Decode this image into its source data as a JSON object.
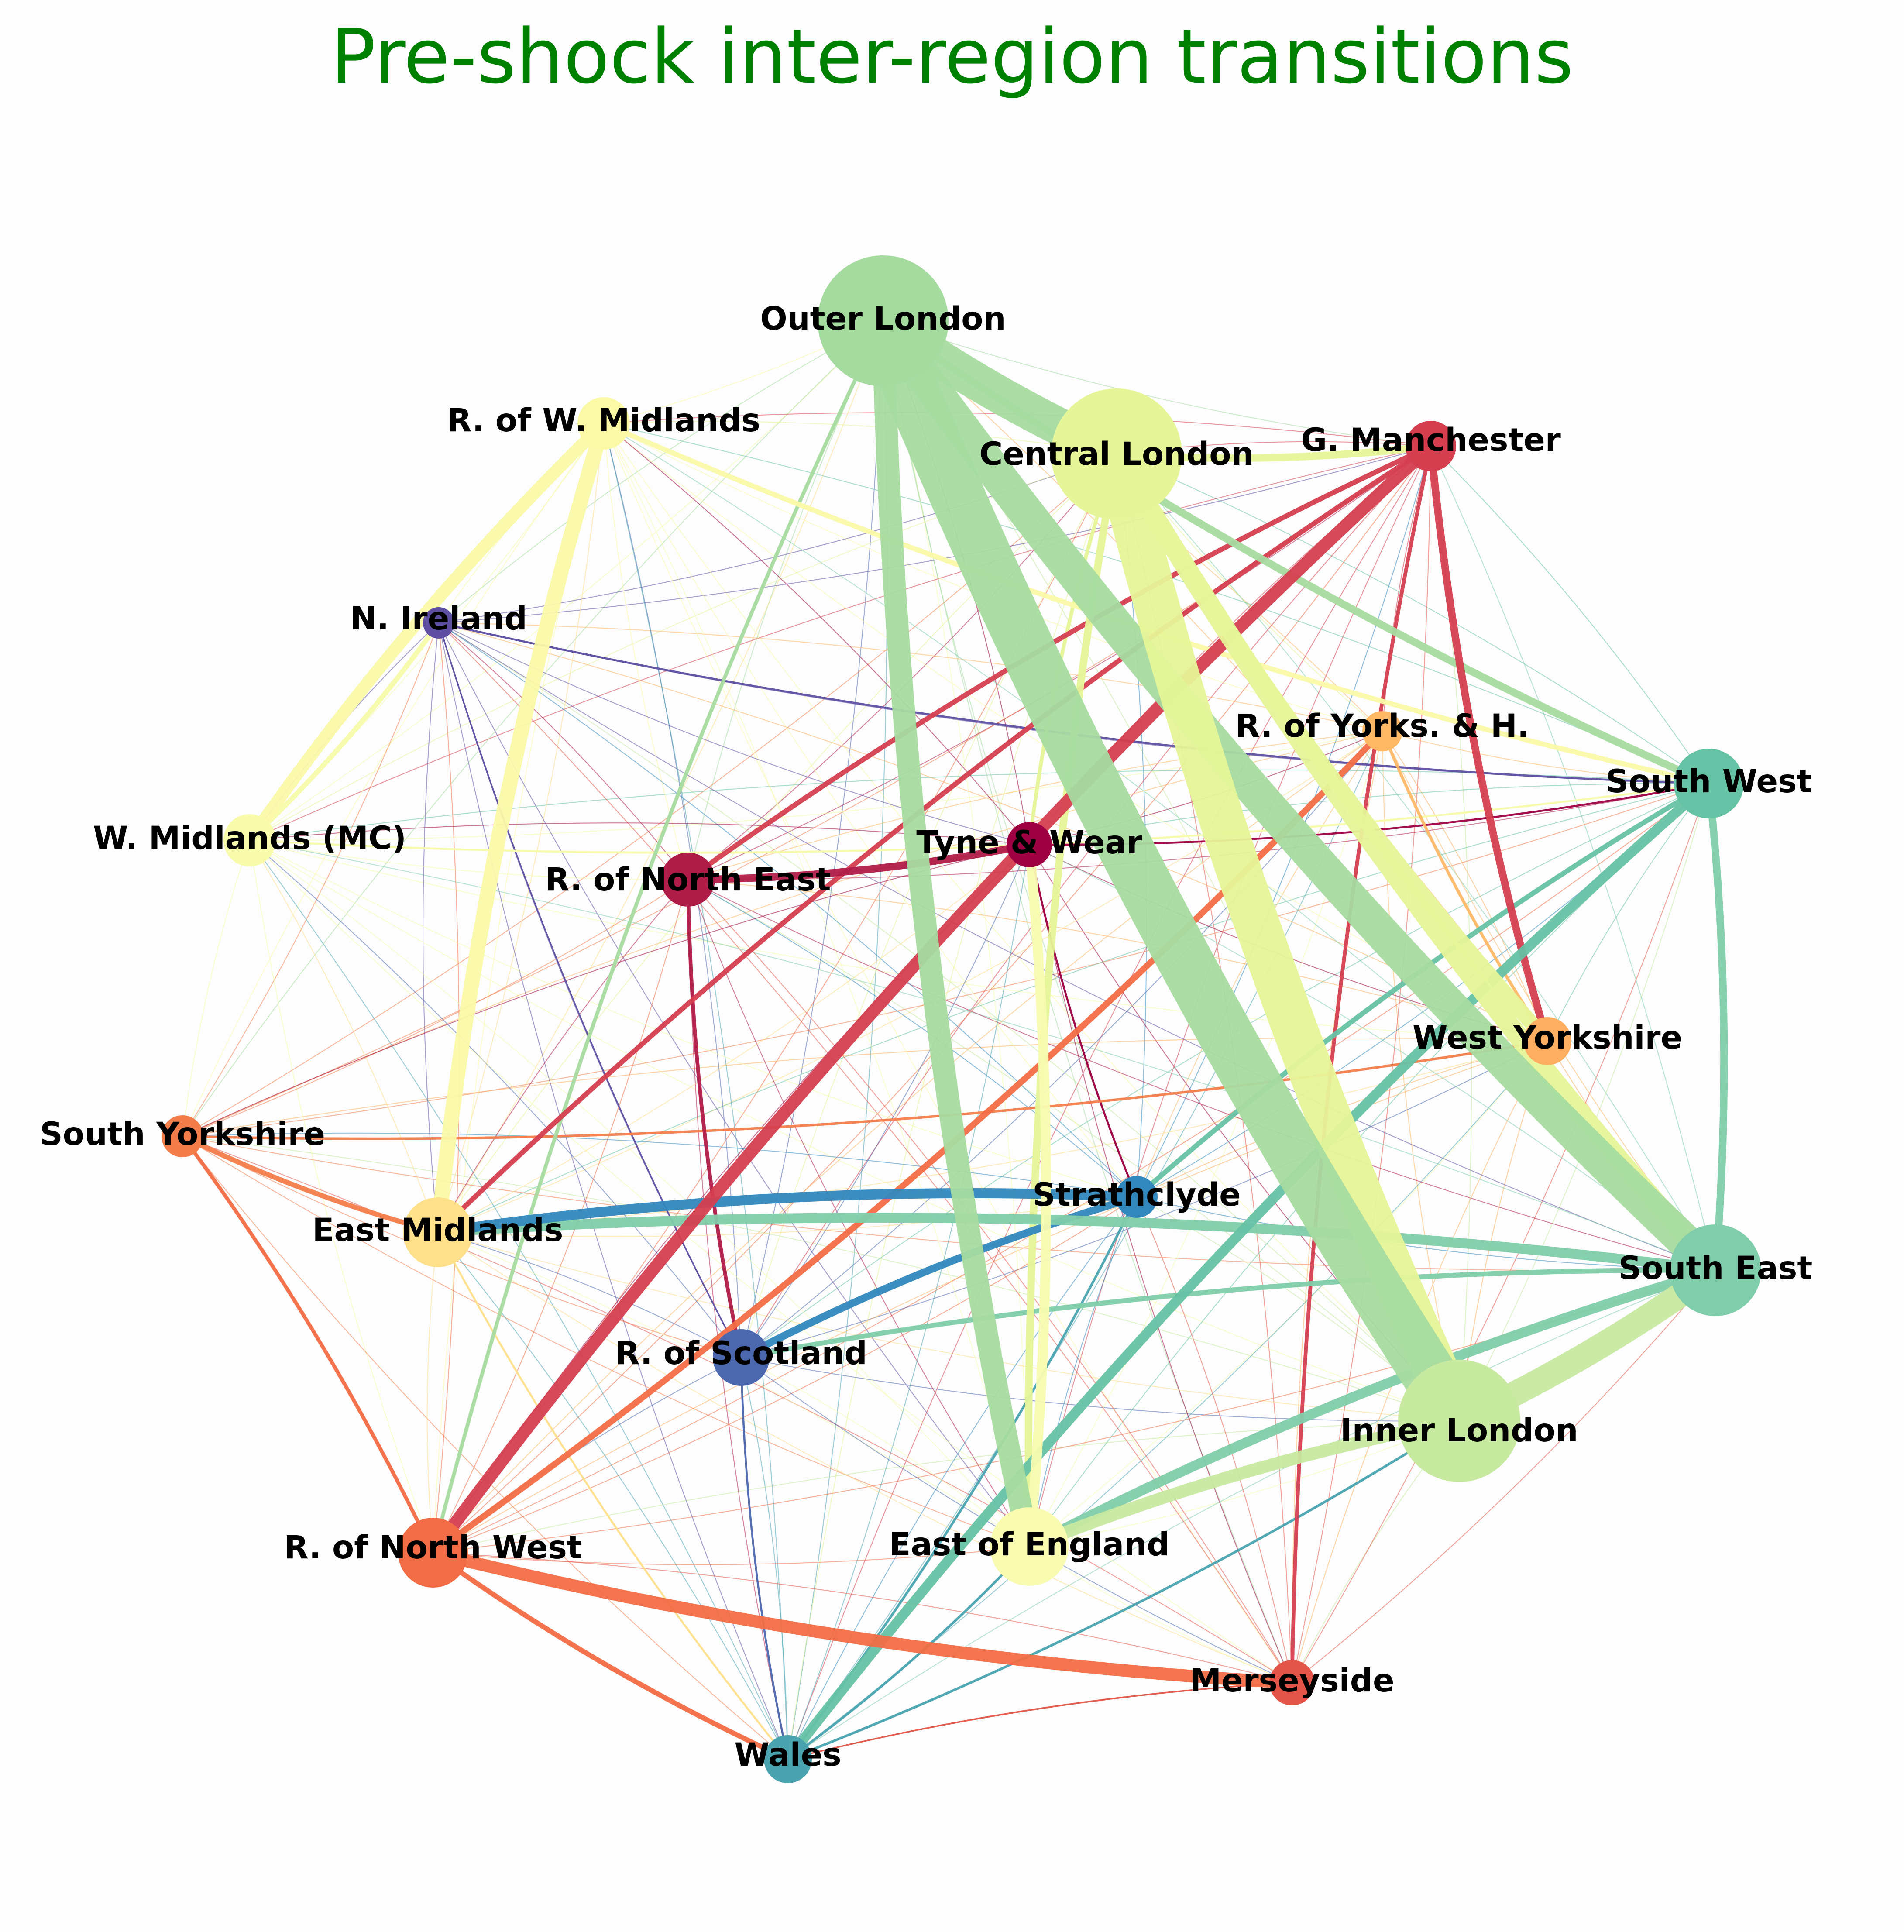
{
  "title": "Pre-shock inter-region transitions",
  "colors": {
    "title": "#008000",
    "label": "#000000",
    "background": "#fdfdfd"
  },
  "nodes": [
    {
      "id": "outer_london",
      "label": "Outer London",
      "color": "#a6dba0"
    },
    {
      "id": "central_london",
      "label": "Central London",
      "color": "#e6f598"
    },
    {
      "id": "inner_london",
      "label": "Inner London",
      "color": "#c7e9a0"
    },
    {
      "id": "g_manchester",
      "label": "G. Manchester",
      "color": "#d53e4f"
    },
    {
      "id": "r_yorks",
      "label": "R. of Yorks. & H.",
      "color": "#fdb866"
    },
    {
      "id": "south_west",
      "label": "South West",
      "color": "#66c2a5"
    },
    {
      "id": "west_yorks",
      "label": "West Yorkshire",
      "color": "#fdae61"
    },
    {
      "id": "south_east",
      "label": "South East",
      "color": "#7fcdaa"
    },
    {
      "id": "r_w_midlands",
      "label": "R. of W. Midlands",
      "color": "#fbf9a6"
    },
    {
      "id": "n_ireland",
      "label": "N. Ireland",
      "color": "#5e4fa2"
    },
    {
      "id": "w_midlands_mc",
      "label": "W. Midlands (MC)",
      "color": "#f7fbaa"
    },
    {
      "id": "r_north_east",
      "label": "R. of North East",
      "color": "#b01c48"
    },
    {
      "id": "tyne_wear",
      "label": "Tyne & Wear",
      "color": "#9e0142"
    },
    {
      "id": "south_yorks",
      "label": "South Yorkshire",
      "color": "#f47d4c"
    },
    {
      "id": "east_midlands",
      "label": "East Midlands",
      "color": "#fee08b"
    },
    {
      "id": "strathclyde",
      "label": "Strathclyde",
      "color": "#3288bd"
    },
    {
      "id": "r_scotland",
      "label": "R. of Scotland",
      "color": "#4b67ad"
    },
    {
      "id": "r_north_west",
      "label": "R. of North West",
      "color": "#f26d45"
    },
    {
      "id": "east_england",
      "label": "East of England",
      "color": "#f8fbb0"
    },
    {
      "id": "merseyside",
      "label": "Merseyside",
      "color": "#e35549"
    },
    {
      "id": "wales",
      "label": "Wales",
      "color": "#4aa4b0"
    }
  ],
  "edges": [
    {
      "source": "outer_london",
      "target": "inner_london",
      "weight": 22
    },
    {
      "source": "outer_london",
      "target": "central_london",
      "weight": 15
    },
    {
      "source": "outer_london",
      "target": "south_east",
      "weight": 14
    },
    {
      "source": "central_london",
      "target": "inner_london",
      "weight": 18
    },
    {
      "source": "central_london",
      "target": "south_east",
      "weight": 8
    },
    {
      "source": "inner_london",
      "target": "south_east",
      "weight": 10
    },
    {
      "source": "outer_london",
      "target": "east_england",
      "weight": 9
    },
    {
      "source": "central_london",
      "target": "west_yorks",
      "weight": 6
    },
    {
      "source": "central_london",
      "target": "g_manchester",
      "weight": 3
    },
    {
      "source": "outer_london",
      "target": "south_west",
      "weight": 3
    },
    {
      "source": "central_london",
      "target": "east_england",
      "weight": 3
    },
    {
      "source": "inner_london",
      "target": "east_england",
      "weight": 5
    },
    {
      "source": "south_east",
      "target": "east_england",
      "weight": 4
    },
    {
      "source": "south_east",
      "target": "south_west",
      "weight": 3
    },
    {
      "source": "south_east",
      "target": "east_midlands",
      "weight": 4
    },
    {
      "source": "south_east",
      "target": "r_scotland",
      "weight": 2
    },
    {
      "source": "south_west",
      "target": "wales",
      "weight": 4
    },
    {
      "source": "south_west",
      "target": "strathclyde",
      "weight": 2
    },
    {
      "source": "r_w_midlands",
      "target": "east_midlands",
      "weight": 6
    },
    {
      "source": "r_w_midlands",
      "target": "w_midlands_mc",
      "weight": 5
    },
    {
      "source": "r_w_midlands",
      "target": "south_west",
      "weight": 2
    },
    {
      "source": "w_midlands_mc",
      "target": "n_ireland",
      "weight": 2
    },
    {
      "source": "g_manchester",
      "target": "r_north_west",
      "weight": 5
    },
    {
      "source": "g_manchester",
      "target": "east_midlands",
      "weight": 2
    },
    {
      "source": "g_manchester",
      "target": "west_yorks",
      "weight": 3
    },
    {
      "source": "g_manchester",
      "target": "r_north_east",
      "weight": 2
    },
    {
      "source": "g_manchester",
      "target": "merseyside",
      "weight": 1.5
    },
    {
      "source": "r_north_east",
      "target": "tyne_wear",
      "weight": 3
    },
    {
      "source": "r_north_east",
      "target": "r_scotland",
      "weight": 1.5
    },
    {
      "source": "r_north_west",
      "target": "merseyside",
      "weight": 5
    },
    {
      "source": "r_north_west",
      "target": "r_yorks",
      "weight": 2.5
    },
    {
      "source": "r_north_west",
      "target": "wales",
      "weight": 2
    },
    {
      "source": "r_north_west",
      "target": "south_yorks",
      "weight": 1.5
    },
    {
      "source": "strathclyde",
      "target": "r_scotland",
      "weight": 3
    },
    {
      "source": "strathclyde",
      "target": "east_midlands",
      "weight": 4
    },
    {
      "source": "east_england",
      "target": "tyne_wear",
      "weight": 4
    },
    {
      "source": "outer_london",
      "target": "r_north_west",
      "weight": 1.5
    },
    {
      "source": "south_yorks",
      "target": "east_midlands",
      "weight": 2
    },
    {
      "source": "south_yorks",
      "target": "west_yorks",
      "weight": 1
    },
    {
      "source": "central_london",
      "target": "tyne_wear",
      "weight": 1.5
    },
    {
      "source": "wales",
      "target": "strathclyde",
      "weight": 1
    },
    {
      "source": "wales",
      "target": "east_england",
      "weight": 1
    },
    {
      "source": "wales",
      "target": "inner_london",
      "weight": 1
    },
    {
      "source": "r_scotland",
      "target": "wales",
      "weight": 0.8
    },
    {
      "source": "n_ireland",
      "target": "south_west",
      "weight": 0.8
    },
    {
      "source": "n_ireland",
      "target": "r_scotland",
      "weight": 0.6
    },
    {
      "source": "merseyside",
      "target": "wales",
      "weight": 0.6
    },
    {
      "source": "r_yorks",
      "target": "west_yorks",
      "weight": 1.2
    },
    {
      "source": "w_midlands_mc",
      "target": "south_west",
      "weight": 0.8
    },
    {
      "source": "east_midlands",
      "target": "wales",
      "weight": 0.8
    },
    {
      "source": "tyne_wear",
      "target": "strathclyde",
      "weight": 0.8
    },
    {
      "source": "tyne_wear",
      "target": "south_west",
      "weight": 0.8
    }
  ]
}
